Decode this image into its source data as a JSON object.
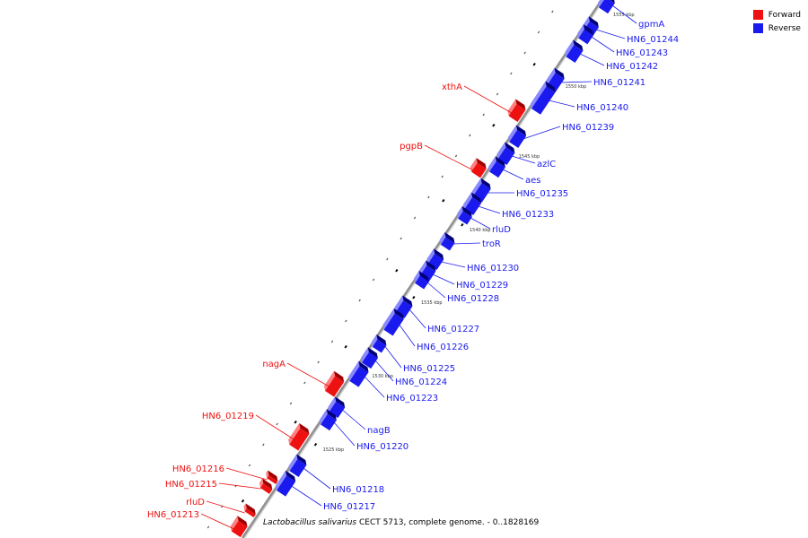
{
  "colors": {
    "forward": "#ee1111",
    "reverse": "#1a1aee",
    "backbone": "#909090",
    "tick": "#000000"
  },
  "legend": [
    {
      "label": "Forward",
      "color": "#ee1111"
    },
    {
      "label": "Reverse",
      "color": "#1a1aee"
    }
  ],
  "caption": {
    "organism": "Lactobacillus salivarius",
    "strain": "CECT 5713",
    "desc": ", complete genome. - 0..1828169"
  },
  "scale_labels": [
    "1555 kbp",
    "1550 kbp",
    "1545 kbp",
    "1540 kbp",
    "1535 kbp",
    "1530 kbp",
    "1525 kbp"
  ],
  "genes": [
    {
      "name": "gpmA",
      "strand": "reverse"
    },
    {
      "name": "HN6_01244",
      "strand": "reverse"
    },
    {
      "name": "HN6_01243",
      "strand": "reverse"
    },
    {
      "name": "HN6_01242",
      "strand": "reverse"
    },
    {
      "name": "HN6_01241",
      "strand": "reverse"
    },
    {
      "name": "xthA",
      "strand": "forward"
    },
    {
      "name": "HN6_01240",
      "strand": "reverse"
    },
    {
      "name": "HN6_01239",
      "strand": "reverse"
    },
    {
      "name": "pgpB",
      "strand": "forward"
    },
    {
      "name": "azlC",
      "strand": "reverse"
    },
    {
      "name": "aes",
      "strand": "reverse"
    },
    {
      "name": "HN6_01235",
      "strand": "reverse"
    },
    {
      "name": "HN6_01233",
      "strand": "reverse"
    },
    {
      "name": "rluD",
      "strand": "reverse"
    },
    {
      "name": "troR",
      "strand": "reverse"
    },
    {
      "name": "HN6_01230",
      "strand": "reverse"
    },
    {
      "name": "HN6_01229",
      "strand": "reverse"
    },
    {
      "name": "HN6_01228",
      "strand": "reverse"
    },
    {
      "name": "HN6_01227",
      "strand": "reverse"
    },
    {
      "name": "HN6_01226",
      "strand": "reverse"
    },
    {
      "name": "HN6_01225",
      "strand": "reverse"
    },
    {
      "name": "HN6_01224",
      "strand": "reverse"
    },
    {
      "name": "nagA",
      "strand": "forward"
    },
    {
      "name": "HN6_01223",
      "strand": "reverse"
    },
    {
      "name": "HN6_01219",
      "strand": "forward"
    },
    {
      "name": "nagB",
      "strand": "reverse"
    },
    {
      "name": "HN6_01220",
      "strand": "reverse"
    },
    {
      "name": "HN6_01216",
      "strand": "forward"
    },
    {
      "name": "HN6_01218",
      "strand": "reverse"
    },
    {
      "name": "HN6_01215",
      "strand": "forward"
    },
    {
      "name": "HN6_01217",
      "strand": "reverse"
    },
    {
      "name": "rluD",
      "strand": "forward"
    },
    {
      "name": "HN6_01213",
      "strand": "forward"
    }
  ]
}
